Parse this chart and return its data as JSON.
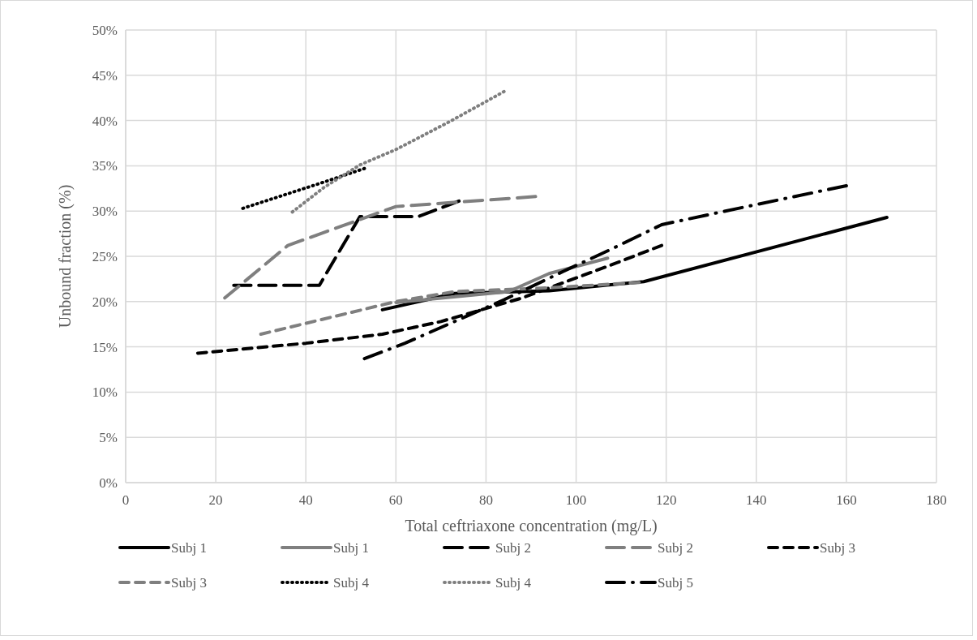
{
  "chart_data": {
    "type": "line",
    "xlabel": "Total ceftriaxone concentration (mg/L)",
    "ylabel": "Unbound fraction (%)",
    "xlim": [
      0,
      180
    ],
    "xticks": [
      0,
      20,
      40,
      60,
      80,
      100,
      120,
      140,
      160,
      180
    ],
    "ylim": [
      0,
      50
    ],
    "yticks": [
      {
        "value": 0,
        "label": "0%"
      },
      {
        "value": 5,
        "label": "5%"
      },
      {
        "value": 10,
        "label": "10%"
      },
      {
        "value": 15,
        "label": "15%"
      },
      {
        "value": 20,
        "label": "20%"
      },
      {
        "value": 25,
        "label": "25%"
      },
      {
        "value": 30,
        "label": "30%"
      },
      {
        "value": 35,
        "label": "35%"
      },
      {
        "value": 40,
        "label": "40%"
      },
      {
        "value": 45,
        "label": "45%"
      },
      {
        "value": 50,
        "label": "50%"
      }
    ],
    "grid": true,
    "legend": "bottom",
    "marker": "none",
    "series": [
      {
        "name": "Subj 1",
        "color": "#000000",
        "line_style": "solid",
        "x": [
          57,
          73,
          94,
          115,
          169
        ],
        "values": [
          19.1,
          20.9,
          21.2,
          22.2,
          29.3
        ]
      },
      {
        "name": "Subj 1",
        "color": "#7f7f7f",
        "line_style": "solid",
        "x": [
          60,
          85,
          94,
          107
        ],
        "values": [
          19.9,
          21.1,
          23.1,
          24.8
        ]
      },
      {
        "name": "Subj 2",
        "color": "#000000",
        "line_style": "longdash",
        "x": [
          24,
          43,
          52,
          65,
          74
        ],
        "values": [
          21.8,
          21.8,
          29.4,
          29.4,
          31.1
        ]
      },
      {
        "name": "Subj 2",
        "color": "#7f7f7f",
        "line_style": "longdash",
        "x": [
          22,
          36,
          60,
          91
        ],
        "values": [
          20.4,
          26.2,
          30.5,
          31.6
        ]
      },
      {
        "name": "Subj 3",
        "color": "#000000",
        "line_style": "dashed",
        "x": [
          16,
          40,
          57,
          70,
          88,
          107,
          119
        ],
        "values": [
          14.3,
          15.4,
          16.4,
          17.8,
          20.4,
          23.9,
          26.2
        ]
      },
      {
        "name": "Subj 3",
        "color": "#7f7f7f",
        "line_style": "dashed",
        "x": [
          30,
          60,
          73,
          93,
          114
        ],
        "values": [
          16.4,
          20.0,
          21.1,
          21.5,
          22.1
        ]
      },
      {
        "name": "Subj 4",
        "color": "#000000",
        "line_style": "dotted",
        "x": [
          26,
          44,
          53
        ],
        "values": [
          30.3,
          33.2,
          34.7
        ]
      },
      {
        "name": "Subj 4",
        "color": "#7f7f7f",
        "line_style": "dotted",
        "x": [
          37,
          44,
          52,
          60,
          72,
          84
        ],
        "values": [
          29.9,
          32.6,
          35.1,
          36.8,
          39.9,
          43.2
        ]
      },
      {
        "name": "Subj 5",
        "color": "#000000",
        "line_style": "dashdot",
        "x": [
          53,
          62,
          84,
          97,
          107,
          119,
          136,
          160
        ],
        "values": [
          13.7,
          15.4,
          20.2,
          23.3,
          25.6,
          28.5,
          30.3,
          32.8
        ]
      }
    ]
  }
}
